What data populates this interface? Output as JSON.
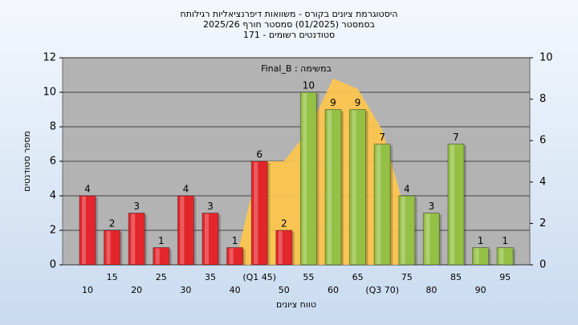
{
  "chart_data": {
    "type": "bar",
    "title": [
      "היסטוגרמת ציונים בקורס - משוואות דיפרנציאליות רגילותח",
      "בסמסטר  (01/2025)  סמסטר חורף 2025/26",
      "סטודנטים רשומים - 171"
    ],
    "annotation": "במשימה : Final_B",
    "x_label": "טווח ציונים",
    "y_label": "מספר סטודנטים",
    "categories": [
      "10",
      "15",
      "20",
      "25",
      "30",
      "35",
      "40",
      "(Q1 45)",
      "50",
      "55",
      "60",
      "65",
      "(Q3 70)",
      "75",
      "80",
      "85",
      "90",
      "95"
    ],
    "series": [
      {
        "type": "bar",
        "values": [
          4,
          2,
          3,
          1,
          4,
          3,
          1,
          6,
          2,
          10,
          9,
          9,
          7,
          4,
          3,
          7,
          1,
          1
        ],
        "colors": [
          "#e3262b",
          "#e3262b",
          "#e3262b",
          "#e3262b",
          "#e3262b",
          "#e3262b",
          "#e3262b",
          "#e3262b",
          "#e3262b",
          "#94c045",
          "#94c045",
          "#94c045",
          "#94c045",
          "#94c045",
          "#94c045",
          "#94c045",
          "#94c045",
          "#94c045"
        ]
      },
      {
        "type": "area",
        "axis": "y2",
        "color": "#ffc74a",
        "values": [
          null,
          null,
          null,
          null,
          null,
          null,
          0,
          5,
          5,
          6.5,
          9,
          8.5,
          6.5,
          2.3,
          null,
          null,
          null,
          null
        ]
      }
    ],
    "ylim": [
      0,
      12
    ],
    "yticks": [
      0,
      2,
      4,
      6,
      8,
      10,
      12
    ],
    "y2lim": [
      0,
      10
    ],
    "y2ticks": [
      0,
      2,
      4,
      6,
      8,
      10
    ],
    "grid": true
  }
}
